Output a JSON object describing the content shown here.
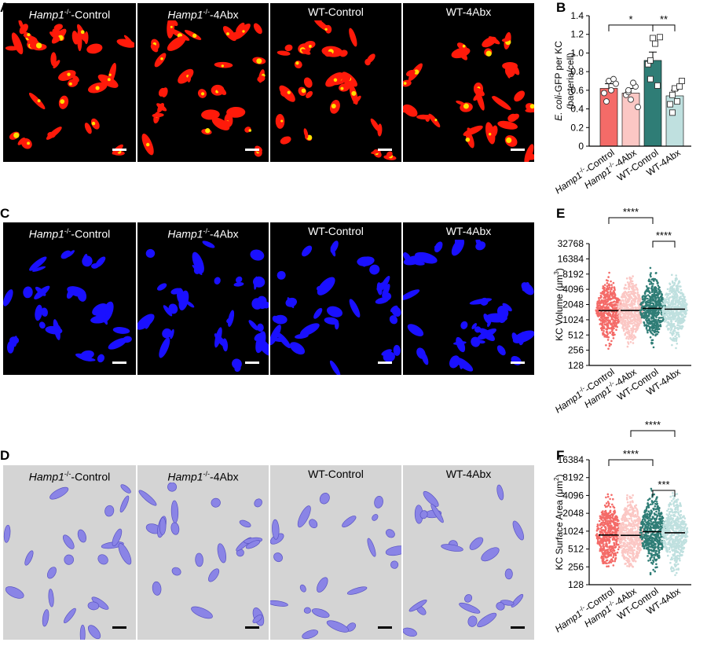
{
  "panels": {
    "A": "A",
    "B": "B",
    "C": "C",
    "D": "D",
    "E": "E",
    "F": "F"
  },
  "groups": [
    {
      "main": "Hamp1",
      "sup": "-/-",
      "suffix": "-Control"
    },
    {
      "main": "Hamp1",
      "sup": "-/-",
      "suffix": "-4Abx"
    },
    {
      "main": "",
      "sup": "",
      "suffix": "WT-Control"
    },
    {
      "main": "",
      "sup": "",
      "suffix": "WT-4Abx"
    }
  ],
  "colors": {
    "hamp_control": "#f46b68",
    "hamp_4abx": "#fbc7c4",
    "wt_control": "#2f7d76",
    "wt_4abx": "#bfe0df",
    "fluor_red": "#ff1a0a",
    "fluor_yellow": "#ffe000",
    "fluor_blue": "#1a10ff",
    "render_surface": "#8a84e6",
    "render_bg": "#d4d4d4"
  },
  "xlabels": [
    {
      "main": "Hamp1",
      "sup": "-/-",
      "suffix": "-Control"
    },
    {
      "main": "Hamp1",
      "sup": "-/-",
      "suffix": "-4Abx"
    },
    {
      "main": "",
      "sup": "",
      "suffix": "WT-Control"
    },
    {
      "main": "",
      "sup": "",
      "suffix": "WT-4Abx"
    }
  ],
  "chart_data": [
    {
      "panel": "B",
      "type": "bar",
      "ylabel_line1_italic": "E. coli",
      "ylabel_line1_rest": "-GFP per KC",
      "ylabel_line2": "(bacteria/cell)",
      "ylim": [
        0,
        1.4
      ],
      "yticks": [
        "0",
        "0.2",
        "0.4",
        "0.6",
        "0.8",
        "1.0",
        "1.2",
        "1.4"
      ],
      "yscale": "linear",
      "series": [
        {
          "values": [
            0.62,
            0.57,
            0.92,
            0.54
          ],
          "sem": [
            0.05,
            0.05,
            0.09,
            0.06
          ]
        }
      ],
      "points": [
        [
          0.57,
          0.7,
          0.72,
          0.48,
          0.6,
          0.67
        ],
        [
          0.55,
          0.5,
          0.64,
          0.58,
          0.68,
          0.42,
          0.6
        ],
        [
          0.88,
          1.16,
          0.65,
          0.72,
          1.1,
          1.17,
          0.92
        ],
        [
          0.45,
          0.62,
          0.64,
          0.36,
          0.48,
          0.7,
          0.55
        ]
      ],
      "brackets": [
        {
          "from": 0,
          "to": 2,
          "label": "*"
        },
        {
          "from": 2,
          "to": 3,
          "label": "**"
        }
      ]
    },
    {
      "panel": "E",
      "type": "scatter",
      "ylabel_prefix": "KC Volume (",
      "ylabel_unit": "μm",
      "ylabel_sup": "3",
      "ylabel_suffix": ")",
      "yscale": "log2",
      "ylim": [
        128,
        32768
      ],
      "yticks": [
        "128",
        "256",
        "512",
        "1024",
        "2048",
        "4096",
        "8192",
        "16384",
        "32768"
      ],
      "medians": [
        1550,
        1560,
        1720,
        1660
      ],
      "ranges": [
        [
          256,
          9000
        ],
        [
          300,
          7500
        ],
        [
          256,
          12000
        ],
        [
          256,
          11000
        ]
      ],
      "brackets": [
        {
          "from": 0,
          "to": 2,
          "label": "****"
        },
        {
          "from": 2,
          "to": 3,
          "label": "****"
        }
      ]
    },
    {
      "panel": "F",
      "type": "scatter",
      "ylabel_prefix": "KC Surface Area (",
      "ylabel_unit": "μm",
      "ylabel_sup": "2",
      "ylabel_suffix": ")",
      "yscale": "log2",
      "ylim": [
        128,
        16384
      ],
      "yticks": [
        "128",
        "256",
        "512",
        "1024",
        "2048",
        "4096",
        "8192",
        "16384"
      ],
      "medians": [
        880,
        870,
        1000,
        960
      ],
      "ranges": [
        [
          256,
          4500
        ],
        [
          256,
          4200
        ],
        [
          180,
          6000
        ],
        [
          180,
          5000
        ]
      ],
      "brackets": [
        {
          "from": 2,
          "to": 3,
          "label": "***"
        },
        {
          "from": 0,
          "to": 2,
          "label": "****"
        },
        {
          "from": 1,
          "to": 3,
          "label": "****"
        }
      ]
    }
  ]
}
